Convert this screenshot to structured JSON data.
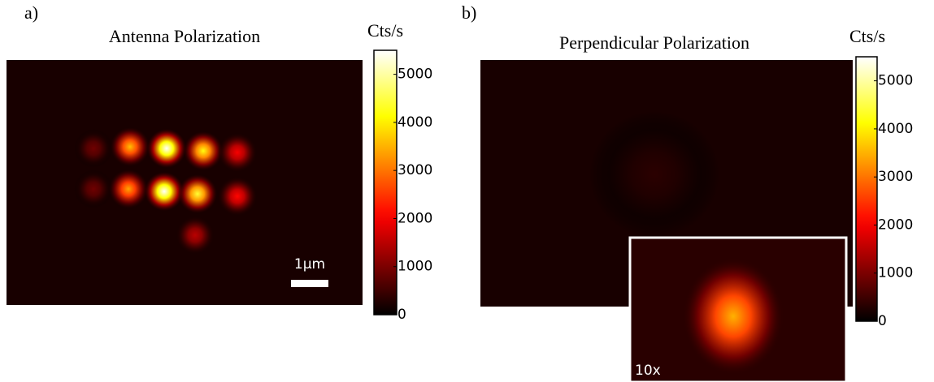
{
  "chart_data": [
    {
      "type": "heatmap",
      "panel": "a)",
      "title": "Antenna Polarization",
      "colorbar_label": "Cts/s",
      "clim": [
        0,
        5500
      ],
      "cticks": [
        0,
        1000,
        2000,
        3000,
        4000,
        5000
      ],
      "values": [
        900,
        3600,
        5500,
        4200,
        2000,
        900,
        3400,
        5500,
        4400,
        2100,
        1500
      ],
      "scale_bar": "1µm"
    },
    {
      "type": "heatmap",
      "panel": "b)",
      "title": "Perpendicular Polarization",
      "colorbar_label": "Cts/s",
      "clim": [
        0,
        5500
      ],
      "cticks": [
        0,
        1000,
        2000,
        3000,
        4000,
        5000
      ],
      "values": [
        350
      ],
      "inset": {
        "label": "10x",
        "values": [
          3500
        ]
      }
    }
  ]
}
